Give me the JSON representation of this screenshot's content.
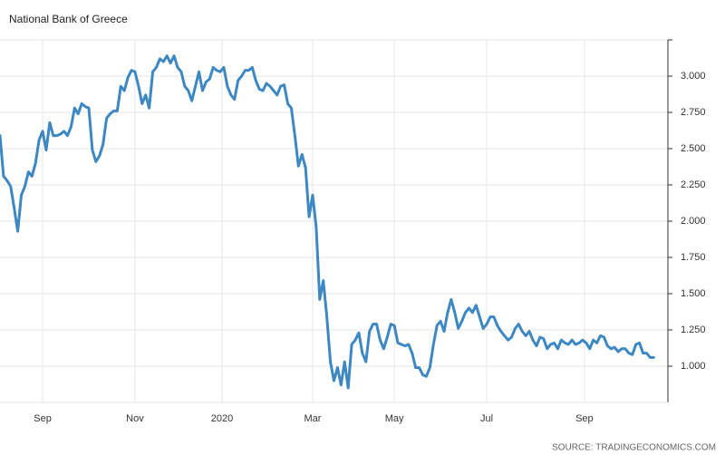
{
  "chart_data": {
    "type": "line",
    "title": "National Bank of Greece",
    "source": "SOURCE: TRADINGECONOMICS.COM",
    "grid": true,
    "y_axis_side": "right",
    "xlim": [
      0,
      188
    ],
    "xticks": [
      {
        "value": 12,
        "label": "Sep"
      },
      {
        "value": 38,
        "label": "Nov"
      },
      {
        "value": 62.5,
        "label": "2020"
      },
      {
        "value": 88,
        "label": "Mar"
      },
      {
        "value": 111,
        "label": "May"
      },
      {
        "value": 137,
        "label": "Jul"
      },
      {
        "value": 164.5,
        "label": "Sep"
      }
    ],
    "ylim": [
      0.75,
      3.25
    ],
    "yticks": [
      {
        "value": 1,
        "label": "1.000"
      },
      {
        "value": 1.25,
        "label": "1.250"
      },
      {
        "value": 1.5,
        "label": "1.500"
      },
      {
        "value": 1.75,
        "label": "1.750"
      },
      {
        "value": 2,
        "label": "2.000"
      },
      {
        "value": 2.25,
        "label": "2.250"
      },
      {
        "value": 2.5,
        "label": "2.500"
      },
      {
        "value": 2.75,
        "label": "2.750"
      },
      {
        "value": 3,
        "label": "3.000"
      }
    ],
    "series": [
      {
        "name": "National Bank of Greece",
        "color": "#3d87c3",
        "values": [
          2.59,
          2.31,
          2.28,
          2.24,
          2.09,
          1.93,
          2.18,
          2.24,
          2.34,
          2.31,
          2.4,
          2.56,
          2.62,
          2.49,
          2.68,
          2.59,
          2.59,
          2.6,
          2.62,
          2.59,
          2.65,
          2.78,
          2.74,
          2.81,
          2.79,
          2.78,
          2.49,
          2.41,
          2.45,
          2.53,
          2.71,
          2.74,
          2.76,
          2.76,
          2.93,
          2.9,
          2.99,
          3.04,
          3.03,
          2.93,
          2.81,
          2.87,
          2.78,
          3.03,
          3.06,
          3.12,
          3.1,
          3.14,
          3.09,
          3.14,
          3.06,
          3.03,
          2.93,
          2.9,
          2.83,
          2.93,
          3.03,
          2.9,
          2.96,
          2.98,
          3.06,
          3.04,
          3.03,
          3.06,
          2.93,
          2.87,
          2.84,
          2.97,
          3.0,
          3.04,
          3.04,
          3.06,
          2.97,
          2.91,
          2.9,
          2.95,
          2.93,
          2.9,
          2.87,
          2.93,
          2.94,
          2.81,
          2.78,
          2.59,
          2.38,
          2.46,
          2.37,
          2.03,
          2.18,
          1.96,
          1.46,
          1.59,
          1.34,
          1.03,
          0.9,
          0.99,
          0.87,
          1.03,
          0.85,
          1.15,
          1.18,
          1.23,
          1.09,
          1.03,
          1.24,
          1.29,
          1.29,
          1.18,
          1.12,
          1.2,
          1.29,
          1.28,
          1.16,
          1.15,
          1.14,
          1.15,
          1.09,
          0.99,
          0.99,
          0.94,
          0.93,
          0.99,
          1.15,
          1.28,
          1.31,
          1.24,
          1.37,
          1.46,
          1.37,
          1.26,
          1.31,
          1.37,
          1.4,
          1.37,
          1.42,
          1.34,
          1.26,
          1.29,
          1.34,
          1.34,
          1.28,
          1.24,
          1.21,
          1.18,
          1.2,
          1.26,
          1.29,
          1.24,
          1.21,
          1.24,
          1.18,
          1.14,
          1.2,
          1.19,
          1.12,
          1.15,
          1.16,
          1.12,
          1.18,
          1.16,
          1.15,
          1.18,
          1.15,
          1.16,
          1.18,
          1.16,
          1.12,
          1.18,
          1.16,
          1.21,
          1.2,
          1.14,
          1.12,
          1.13,
          1.1,
          1.12,
          1.12,
          1.09,
          1.08,
          1.15,
          1.16,
          1.09,
          1.09,
          1.06,
          1.06
        ]
      }
    ]
  }
}
